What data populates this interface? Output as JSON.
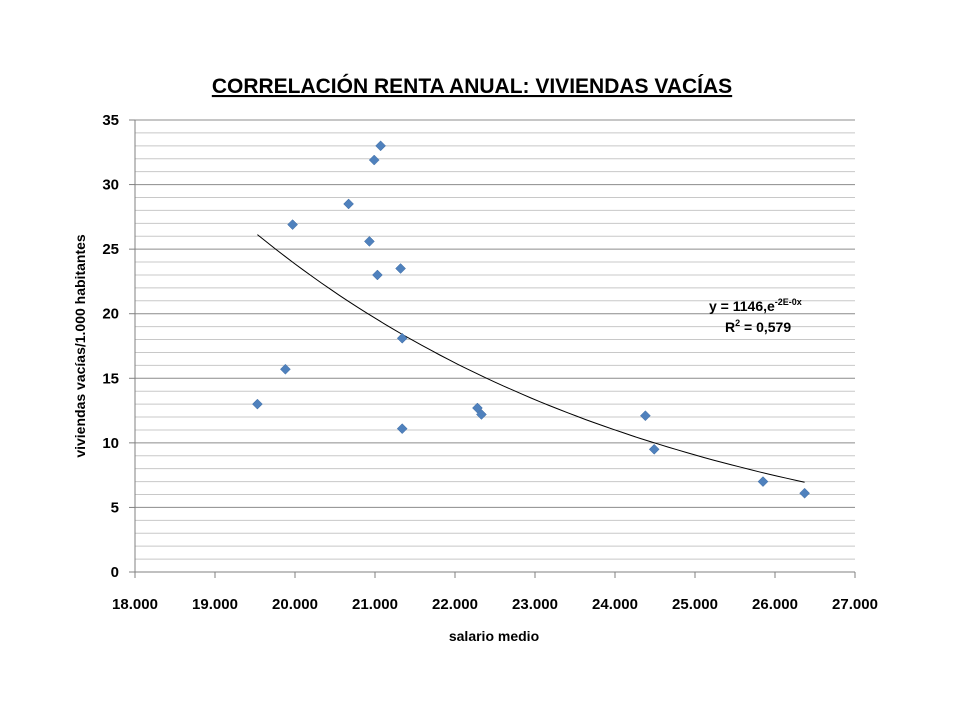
{
  "chart_data": {
    "type": "scatter",
    "title": "CORRELACIÓN RENTA ANUAL: VIVIENDAS VACÍAS",
    "xlabel": "salario medio",
    "ylabel": "viviendas vacías/1.000 habitantes",
    "xlim": [
      18000,
      27000
    ],
    "ylim": [
      0,
      35
    ],
    "x_ticks": [
      18000,
      19000,
      20000,
      21000,
      22000,
      23000,
      24000,
      25000,
      26000,
      27000
    ],
    "x_tick_labels": [
      "18.000",
      "19.000",
      "20.000",
      "21.000",
      "22.000",
      "23.000",
      "24.000",
      "25.000",
      "26.000",
      "27.000"
    ],
    "y_ticks": [
      0,
      5,
      10,
      15,
      20,
      25,
      30,
      35
    ],
    "y_tick_labels": [
      "0",
      "5",
      "10",
      "15",
      "20",
      "25",
      "30",
      "35"
    ],
    "y_minor_step": 1,
    "grid": true,
    "marker_color": "#4F81BD",
    "points": [
      {
        "x": 19530,
        "y": 13.0
      },
      {
        "x": 19880,
        "y": 15.7
      },
      {
        "x": 19970,
        "y": 26.9
      },
      {
        "x": 20670,
        "y": 28.5
      },
      {
        "x": 20930,
        "y": 25.6
      },
      {
        "x": 20990,
        "y": 31.9
      },
      {
        "x": 21030,
        "y": 23.0
      },
      {
        "x": 21070,
        "y": 33.0
      },
      {
        "x": 21320,
        "y": 23.5
      },
      {
        "x": 21340,
        "y": 18.1
      },
      {
        "x": 21340,
        "y": 11.1
      },
      {
        "x": 22280,
        "y": 12.7
      },
      {
        "x": 22330,
        "y": 12.2
      },
      {
        "x": 24380,
        "y": 12.1
      },
      {
        "x": 24490,
        "y": 9.5
      },
      {
        "x": 25850,
        "y": 7.0
      },
      {
        "x": 26370,
        "y": 6.1
      }
    ],
    "trendline": {
      "type": "exponential",
      "a": 1146,
      "b": -0.0001936,
      "x_range": [
        19530,
        26370
      ],
      "equation": {
        "base": "y = 1146,e",
        "exponent": "-2E-0x"
      },
      "r2_label": {
        "prefix": "R",
        "sup": "2",
        "rest": " = 0,579"
      }
    }
  }
}
